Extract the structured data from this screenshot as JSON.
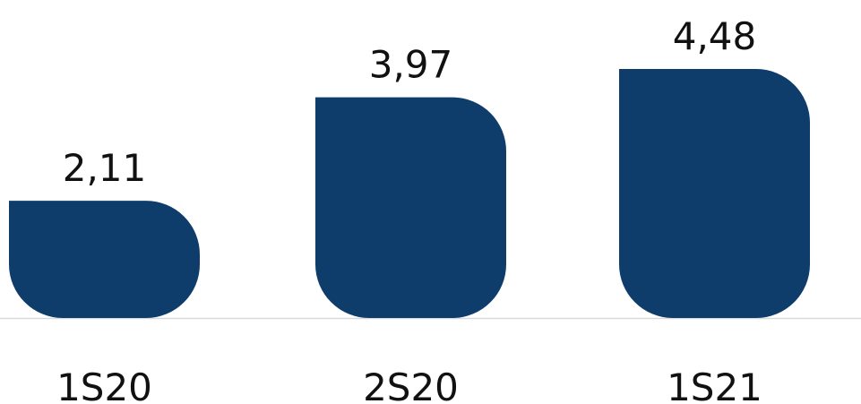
{
  "chart_data": {
    "type": "bar",
    "categories": [
      "1S20",
      "2S20",
      "1S21"
    ],
    "values": [
      2.11,
      3.97,
      4.48
    ],
    "value_labels": [
      "2,11",
      "3,97",
      "4,48"
    ],
    "color": "#0f3d6b"
  }
}
